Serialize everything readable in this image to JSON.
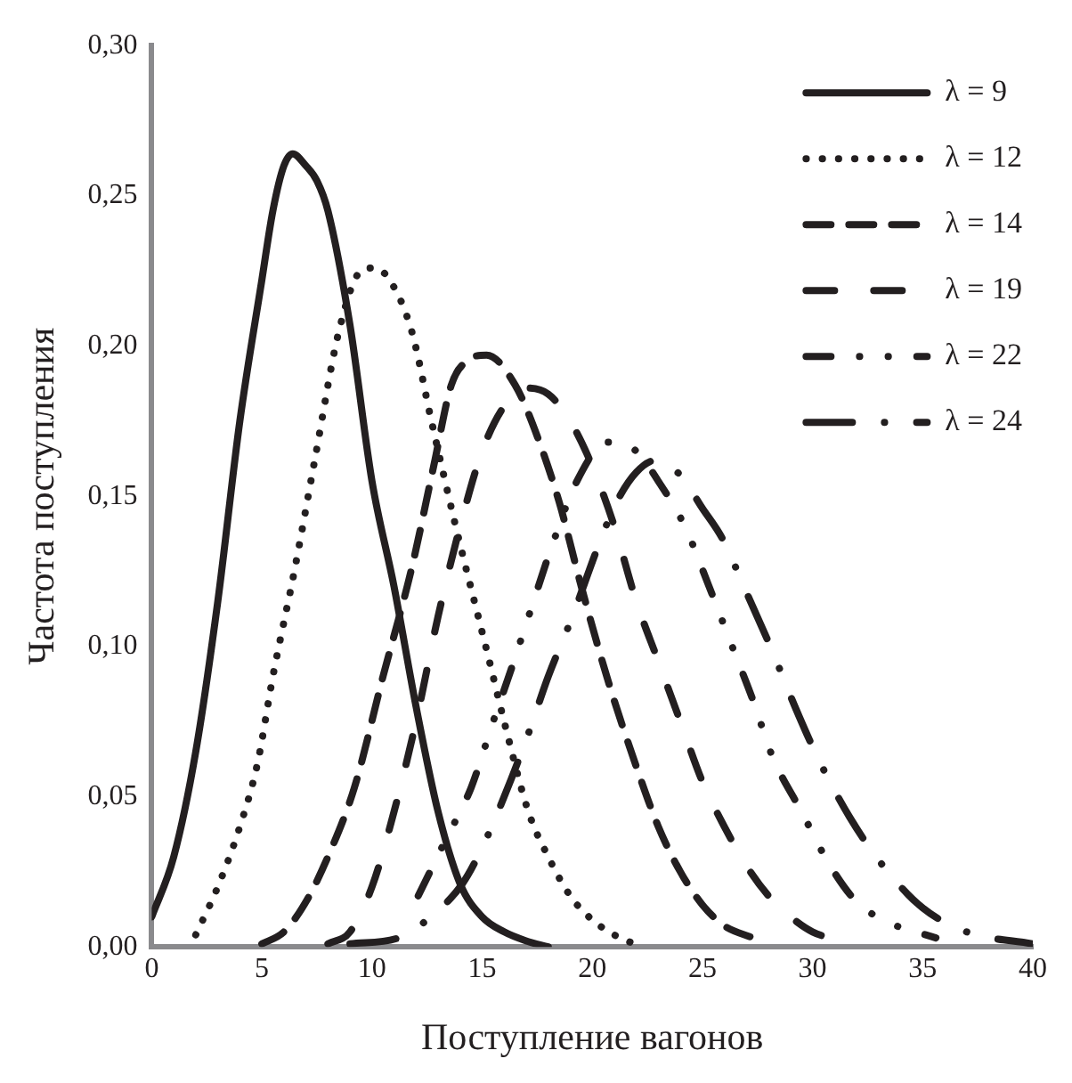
{
  "chart_data": {
    "type": "line",
    "xlabel": "Поступление вагонов",
    "ylabel": "Частота поступления",
    "xlim": [
      0,
      40
    ],
    "xticks": [
      0,
      5,
      10,
      15,
      20,
      25,
      30,
      35,
      40
    ],
    "ylim": [
      0,
      0.3
    ],
    "yticks": [
      {
        "value": 0,
        "label": "0,00"
      },
      {
        "value": 0.05,
        "label": "0,05"
      },
      {
        "value": 0.1,
        "label": "0,10"
      },
      {
        "value": 0.15,
        "label": "0,15"
      },
      {
        "value": 0.2,
        "label": "0,20"
      },
      {
        "value": 0.25,
        "label": "0,25"
      },
      {
        "value": 0.3,
        "label": "0,30"
      }
    ],
    "grid": false,
    "legend": "top right",
    "marker": "none",
    "series": [
      {
        "name": "λ = 9",
        "color": "#231f20",
        "line_style": "solid",
        "x": [
          0,
          1,
          2,
          3,
          4,
          5,
          5.5,
          6,
          6.4,
          7,
          7.5,
          8,
          9,
          10,
          11,
          12,
          13,
          14,
          15,
          16,
          17,
          18
        ],
        "values": [
          0.01,
          0.03,
          0.065,
          0.115,
          0.175,
          0.222,
          0.245,
          0.26,
          0.264,
          0.26,
          0.255,
          0.245,
          0.207,
          0.155,
          0.12,
          0.08,
          0.045,
          0.021,
          0.01,
          0.005,
          0.002,
          0
        ]
      },
      {
        "name": "λ = 12",
        "color": "#231f20",
        "line_style": "dotted",
        "x": [
          2,
          3,
          4,
          4.8,
          5.5,
          6.5,
          7.4,
          8.5,
          9.5,
          10.1,
          10.8,
          11.8,
          12.7,
          13.8,
          15.3,
          16,
          17.1,
          18,
          19,
          20,
          21,
          21.9
        ],
        "values": [
          0.004,
          0.02,
          0.04,
          0.061,
          0.09,
          0.126,
          0.162,
          0.205,
          0.225,
          0.226,
          0.222,
          0.205,
          0.175,
          0.14,
          0.096,
          0.075,
          0.045,
          0.03,
          0.017,
          0.009,
          0.004,
          0.001
        ]
      },
      {
        "name": "λ = 14",
        "color": "#231f20",
        "line_style": "dashed",
        "x": [
          5,
          6,
          7,
          8,
          9.2,
          10.5,
          11.8,
          12.8,
          13.6,
          14.3,
          15.2,
          16.5,
          17.5,
          18.5,
          19.5,
          20.7,
          22,
          23,
          24,
          25,
          26,
          27.3
        ],
        "values": [
          0.001,
          0.005,
          0.015,
          0.03,
          0.053,
          0.09,
          0.126,
          0.16,
          0.187,
          0.195,
          0.197,
          0.187,
          0.17,
          0.148,
          0.12,
          0.089,
          0.06,
          0.04,
          0.025,
          0.014,
          0.007,
          0.003
        ]
      },
      {
        "name": "λ = 19",
        "color": "#231f20",
        "line_style": "dashed",
        "x": [
          8,
          9,
          10,
          11,
          12,
          13,
          14,
          15,
          16,
          17,
          18,
          19,
          20,
          21,
          22,
          23,
          24,
          25,
          26,
          27,
          28,
          29,
          30,
          31.3
        ],
        "values": [
          0.001,
          0.005,
          0.02,
          0.045,
          0.075,
          0.11,
          0.14,
          0.165,
          0.18,
          0.186,
          0.184,
          0.175,
          0.16,
          0.14,
          0.115,
          0.095,
          0.075,
          0.055,
          0.04,
          0.027,
          0.017,
          0.01,
          0.005,
          0.002
        ]
      },
      {
        "name": "λ = 22",
        "color": "#231f20",
        "line_style": "dashed",
        "x": [
          12.1,
          13.3,
          14.5,
          15.5,
          16.3,
          17.2,
          18.1,
          19.3,
          20.7,
          22,
          23,
          24.2,
          25.3,
          26.3,
          27.3,
          28.2,
          29.5,
          30.8,
          32,
          33.5,
          35.6
        ],
        "values": [
          0.017,
          0.035,
          0.053,
          0.075,
          0.092,
          0.112,
          0.132,
          0.155,
          0.168,
          0.165,
          0.155,
          0.14,
          0.12,
          0.101,
          0.082,
          0.063,
          0.045,
          0.027,
          0.015,
          0.008,
          0.003
        ]
      },
      {
        "name": "λ = 24",
        "color": "#231f20",
        "line_style": "dashed",
        "x": [
          9,
          11.2,
          12.5,
          14.1,
          15,
          16,
          17.1,
          18,
          19.1,
          20.3,
          21.1,
          22,
          22.9,
          24,
          25,
          25.9,
          27,
          28.2,
          29.2,
          30.3,
          31.7,
          33.2,
          35,
          37,
          40
        ],
        "values": [
          0.001,
          0.003,
          0.009,
          0.021,
          0.033,
          0.05,
          0.071,
          0.09,
          0.11,
          0.134,
          0.148,
          0.158,
          0.162,
          0.157,
          0.146,
          0.136,
          0.118,
          0.098,
          0.08,
          0.062,
          0.043,
          0.027,
          0.013,
          0.005,
          0.001
        ]
      }
    ]
  }
}
